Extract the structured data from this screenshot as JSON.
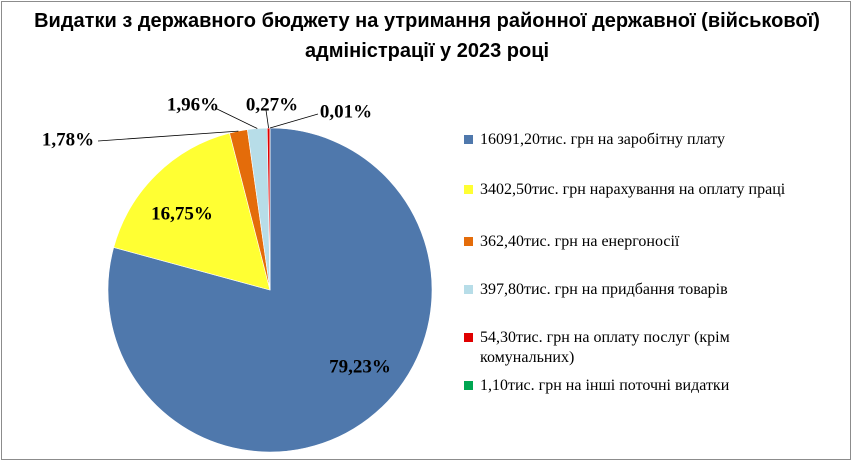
{
  "chart_data": {
    "type": "pie",
    "title": "Видатки з державного бюджету на утримання районної державної (військової) адміністрації у 2023 році",
    "series": [
      {
        "name": "16091,20тис. грн на заробітну плату",
        "value": 16091.2,
        "percent_label": "79,23%",
        "color": "#4F78AC"
      },
      {
        "name": "3402,50тис. грн нарахування на оплату праці",
        "value": 3402.5,
        "percent_label": "16,75%",
        "color": "#FFFF33"
      },
      {
        "name": "362,40тис. грн на енергоносії",
        "value": 362.4,
        "percent_label": "1,78%",
        "color": "#E46C0A"
      },
      {
        "name": "397,80тис. грн на придбання товарів",
        "value": 397.8,
        "percent_label": "1,96%",
        "color": "#B7DDE8"
      },
      {
        "name": "54,30тис. грн  на оплату послуг (крім комунальних)",
        "value": 54.3,
        "percent_label": "0,27%",
        "color": "#E00000"
      },
      {
        "name": "1,10тис. грн  на інші  поточні видатки",
        "value": 1.1,
        "percent_label": "0,01%",
        "color": "#00A651"
      }
    ],
    "legend_position": "right"
  }
}
